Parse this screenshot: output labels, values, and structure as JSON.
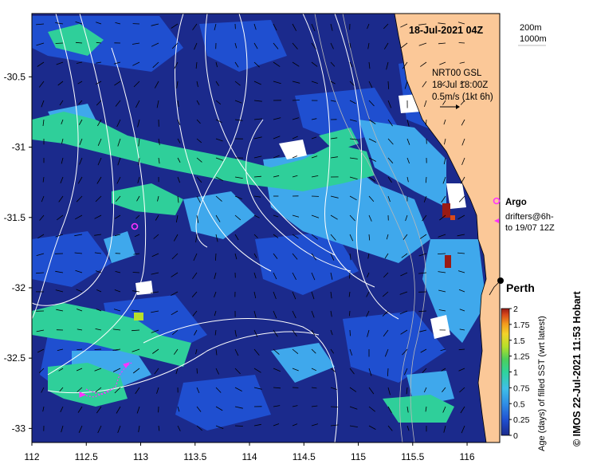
{
  "map": {
    "title": "18-Jul-2021 04Z",
    "depth_labels": [
      "200m",
      "1000m"
    ],
    "current_note": [
      "NRT00 GSL",
      "18-Jul 18:00Z",
      "0.5m/s (1kt 6h)"
    ],
    "argo_label": "Argo",
    "drifter_label": [
      "drifters@6h-",
      "to 19/07 12Z"
    ],
    "city_label": "Perth",
    "credit": "© IMOS 22-Jul-2021 11:53 Hobart",
    "x_axis": {
      "ticks": [
        "112",
        "112.5",
        "113",
        "113.5",
        "114",
        "114.5",
        "115",
        "115.5",
        "116"
      ],
      "range": [
        112,
        116.3
      ]
    },
    "y_axis": {
      "ticks": [
        "-30.5",
        "-31",
        "-31.5",
        "-32",
        "-32.5",
        "-33"
      ],
      "range": [
        -33.1,
        -30.05
      ]
    },
    "colorbar": {
      "label": "Age (days) of filled SST (wrt latest)",
      "ticks": [
        "0",
        "0.25",
        "0.5",
        "0.75",
        "1",
        "1.25",
        "1.5",
        "1.75",
        "2"
      ],
      "colors": [
        "#1b2a8c",
        "#1f4fd0",
        "#2f8fe6",
        "#3fc0e8",
        "#2fd39a",
        "#4ccf5a",
        "#b6e02a",
        "#f3d32a",
        "#f39a1c",
        "#d94a1a",
        "#9a1a14"
      ]
    },
    "colors": {
      "ocean_deep": "#1b2a8c",
      "land": "#fbc898",
      "argo": "#ff33ff",
      "drifter": "#ff33ff"
    }
  }
}
